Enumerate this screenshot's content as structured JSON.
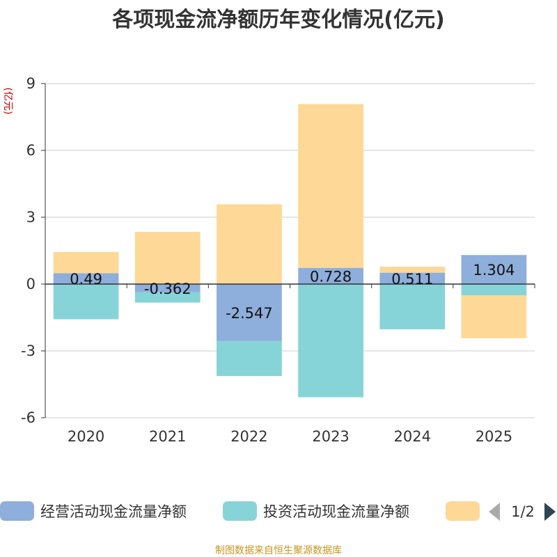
{
  "chart_data": {
    "type": "bar",
    "stacked": true,
    "title": "各项现金流净额历年变化情况(亿元)",
    "ylabel": "(亿元)",
    "categories": [
      "2020",
      "2021",
      "2022",
      "2023",
      "2024",
      "2025"
    ],
    "ylim": [
      -6,
      9
    ],
    "yticks": [
      9,
      6,
      3,
      0,
      -3,
      -6
    ],
    "grid": true,
    "legend_position": "bottom",
    "series": [
      {
        "name": "经营活动现金流量净额",
        "color": "#8eaedb",
        "values": [
          0.49,
          -0.362,
          -2.547,
          0.728,
          0.511,
          1.304
        ],
        "labels": [
          "0.49",
          "-0.362",
          "-2.547",
          "0.728",
          "0.511",
          "1.304"
        ]
      },
      {
        "name": "投资活动现金流量净额",
        "color": "#86d4d8",
        "values": [
          -1.58,
          -0.47,
          -1.58,
          -5.08,
          -2.03,
          -0.5
        ]
      },
      {
        "name": "",
        "color": "#fed896",
        "values": [
          0.95,
          2.34,
          3.58,
          7.35,
          0.27,
          -1.93
        ]
      }
    ]
  },
  "legend": {
    "page": "1/2",
    "prev_icon": "triangle-left-icon",
    "next_icon": "triangle-right-icon"
  },
  "source": "制图数据来自恒生聚源数据库"
}
